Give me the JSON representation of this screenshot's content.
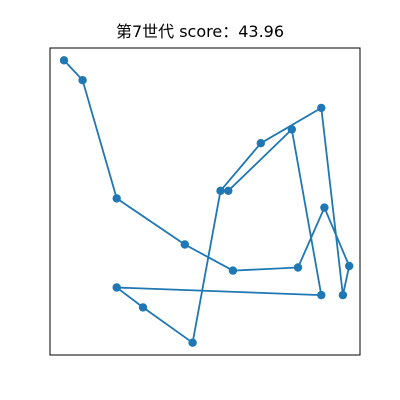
{
  "chart_data": {
    "type": "line",
    "title": "第7世代 score：43.96",
    "xlabel": "",
    "ylabel": "",
    "xlim": [
      0,
      10
    ],
    "ylim": [
      0,
      10
    ],
    "grid": false,
    "axes_ticks_visible": false,
    "line_color": "#1f77b4",
    "marker": "circle",
    "series": [
      {
        "x": [
          0.45,
          1.05,
          2.15,
          4.35,
          5.9,
          8.0,
          8.85,
          9.65,
          9.45,
          8.75,
          6.8,
          5.5,
          4.6,
          3.0,
          2.15,
          8.75,
          7.8,
          5.75
        ],
        "y": [
          9.6,
          8.95,
          5.1,
          3.6,
          2.75,
          2.85,
          4.8,
          2.9,
          1.95,
          8.05,
          6.9,
          5.35,
          0.4,
          1.55,
          2.2,
          1.95,
          7.35,
          5.35
        ]
      }
    ]
  }
}
